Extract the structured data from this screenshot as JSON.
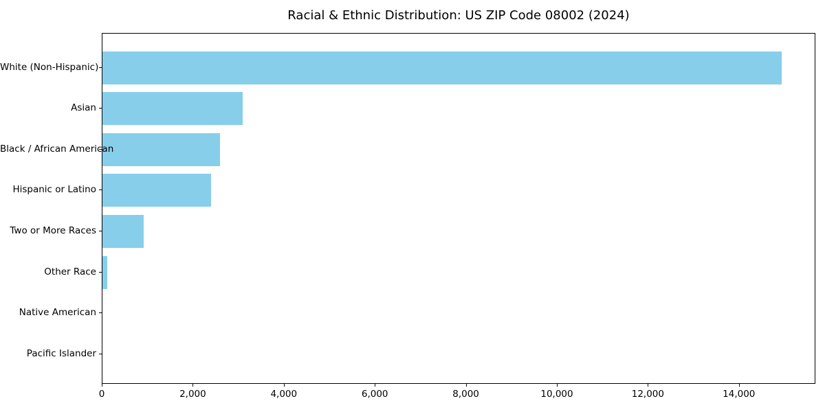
{
  "chart_data": {
    "type": "bar",
    "orientation": "horizontal",
    "title": "Racial & Ethnic Distribution: US ZIP Code 08002 (2024)",
    "xlabel": "",
    "ylabel": "",
    "categories": [
      "White (Non-Hispanic)",
      "Asian",
      "Black / African American",
      "Hispanic or Latino",
      "Two or More Races",
      "Other Race",
      "Native American",
      "Pacific Islander"
    ],
    "values": [
      14930,
      3080,
      2590,
      2390,
      900,
      105,
      0,
      0
    ],
    "xlim": [
      0,
      15680
    ],
    "x_ticks": [
      0,
      2000,
      4000,
      6000,
      8000,
      10000,
      12000,
      14000
    ],
    "x_tick_labels": [
      "0",
      "2,000",
      "4,000",
      "6,000",
      "8,000",
      "10,000",
      "12,000",
      "14,000"
    ],
    "bar_color": "#87CEEB",
    "grid": false,
    "legend": null,
    "plot_border_color": "#000000",
    "text_color": "#000000"
  }
}
